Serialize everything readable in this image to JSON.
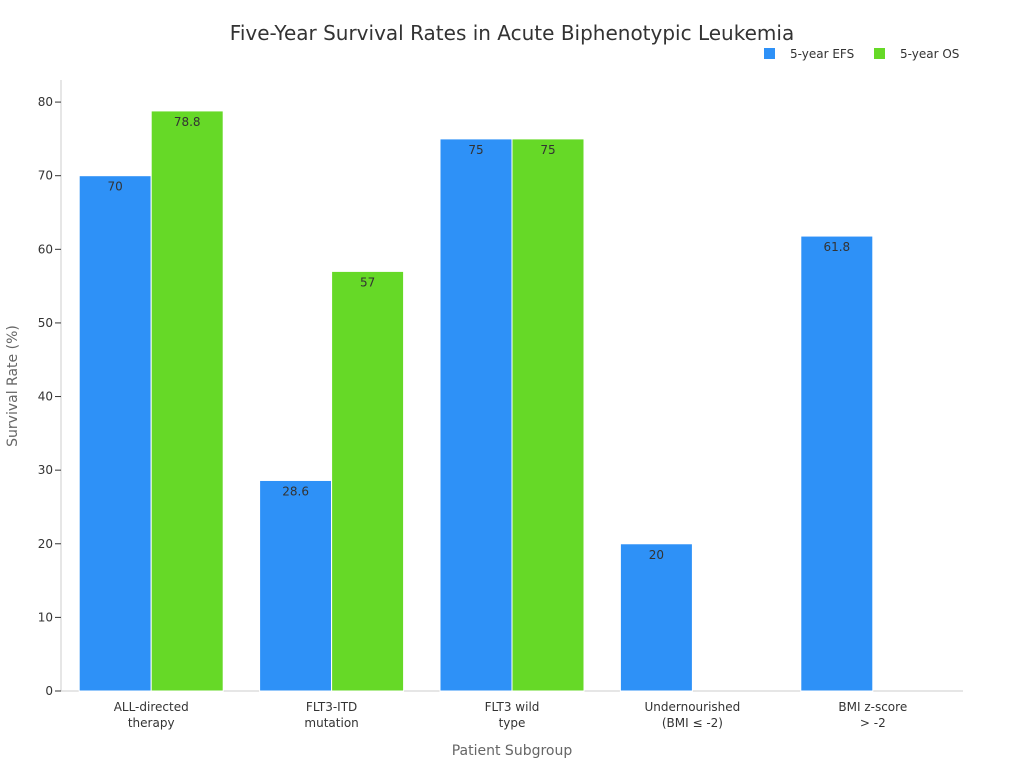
{
  "chart_data": {
    "type": "bar",
    "title": "Five-Year Survival Rates in Acute Biphenotypic Leukemia",
    "xlabel": "Patient Subgroup",
    "ylabel": "Survival Rate (%)",
    "ylim": [
      0,
      83
    ],
    "yticks": [
      0,
      10,
      20,
      30,
      40,
      50,
      60,
      70,
      80
    ],
    "grid": false,
    "legend_position": "top-right",
    "categories": [
      [
        "ALL-directed",
        "therapy"
      ],
      [
        "FLT3-ITD",
        "mutation"
      ],
      [
        "FLT3 wild",
        "type"
      ],
      [
        "Undernourished",
        "(BMI ≤ -2)"
      ],
      [
        "BMI z-score",
        "> -2"
      ]
    ],
    "series": [
      {
        "name": "5-year EFS",
        "color": "#2E91F7",
        "values": [
          70,
          28.6,
          75,
          20,
          61.8
        ]
      },
      {
        "name": "5-year OS",
        "color": "#66D927",
        "values": [
          78.8,
          57,
          75,
          null,
          null
        ]
      }
    ]
  }
}
